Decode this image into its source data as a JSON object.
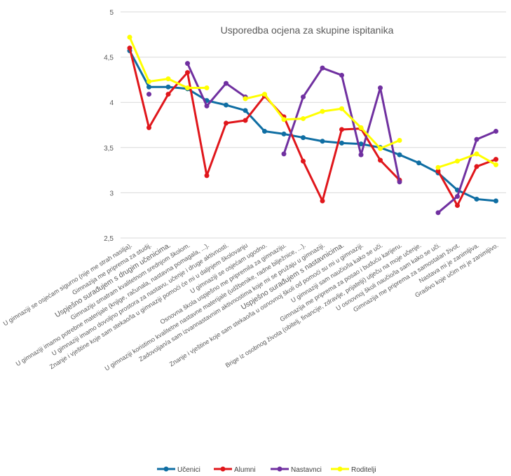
{
  "chart_data": {
    "type": "line",
    "title": "Usporedba ocjena za skupine ispitanika",
    "xlabel": "",
    "ylabel": "",
    "ylim": [
      2.5,
      5
    ],
    "yticks": [
      "2,5",
      "3",
      "3,5",
      "4",
      "4,5",
      "5"
    ],
    "grid": true,
    "legend_position": "bottom",
    "categories": [
      "U gimnaziji se osjećam sigurno (nije me strah nasilja).",
      "Gimnazija me priprema za studij.",
      "Uspješno surađujem s drugim učenicima.",
      "Gimnaziju smatram kvalitetnom srednjom školom.",
      "U gimnaziji imamo potrebne materijale (knjige, računala, nastavna pomagala, ...).",
      "U gimnaziji imamo dovoljno prostora za nastavu, učenje i druge aktivnosti.",
      "Znanje i vještine koje sam stekao/la u gimnaziji pomoći će mi u daljnjem školovanju",
      "U gimnaziji se osjećam ugodno.",
      "Osnovna škola uspješno me pripremila za gimnaziju.",
      "U gimnaziji koristimo kvalitetne nastavne materijale (udžbenike, radne bilježnice, ...).",
      "Zadovoljan/a sam izvannastavnim aktivnostima koje mi se pružaju u gimnaziji.",
      "Uspješno surađujem s nastavnicima.",
      "Znanje i vještine koje sam stekao/la u osnovnoj školi od pomoći su mi u gimnaziji.",
      "U gimnaziji sam naučio/la kako se uči.",
      "Gimnazija me priprema za posao i buduću karijeru.",
      "Brige iz osobnog života (obitelj, financije, zdravlje, prijatelji) utječu na moje učenje.",
      "U osnovnoj školi naučio/la sam kako se uči.",
      "Gimnazija me priprema za samostalan život.",
      "Nastava mi je zanimljiva.",
      "Gradivo koje učim mi je zanimljivo."
    ],
    "series": [
      {
        "name": "Učenici",
        "color": "#0f6ea3",
        "values": [
          4.57,
          4.17,
          4.17,
          4.15,
          4.02,
          3.97,
          3.91,
          3.68,
          3.65,
          3.61,
          3.57,
          3.55,
          3.54,
          3.5,
          3.42,
          3.33,
          3.22,
          3.03,
          2.93,
          2.91
        ]
      },
      {
        "name": "Alumni",
        "color": "#e0161b",
        "values": [
          4.6,
          3.72,
          4.09,
          4.33,
          3.19,
          3.77,
          3.8,
          4.07,
          3.84,
          3.35,
          2.91,
          3.7,
          3.71,
          3.36,
          3.14,
          null,
          3.24,
          2.86,
          3.29,
          3.37
        ]
      },
      {
        "name": "Nastavnci",
        "color": "#7030a0",
        "values": [
          null,
          4.09,
          null,
          4.43,
          3.96,
          4.21,
          4.06,
          null,
          3.43,
          4.06,
          4.38,
          4.3,
          3.42,
          4.16,
          3.12,
          null,
          2.78,
          2.96,
          3.59,
          3.68
        ]
      },
      {
        "name": "Roditelji",
        "color": "#ffff00",
        "values": [
          4.72,
          4.23,
          4.26,
          4.16,
          4.16,
          null,
          4.04,
          4.09,
          3.81,
          3.82,
          3.9,
          3.93,
          3.72,
          3.49,
          3.58,
          null,
          3.28,
          3.35,
          3.43,
          3.31
        ]
      }
    ]
  }
}
